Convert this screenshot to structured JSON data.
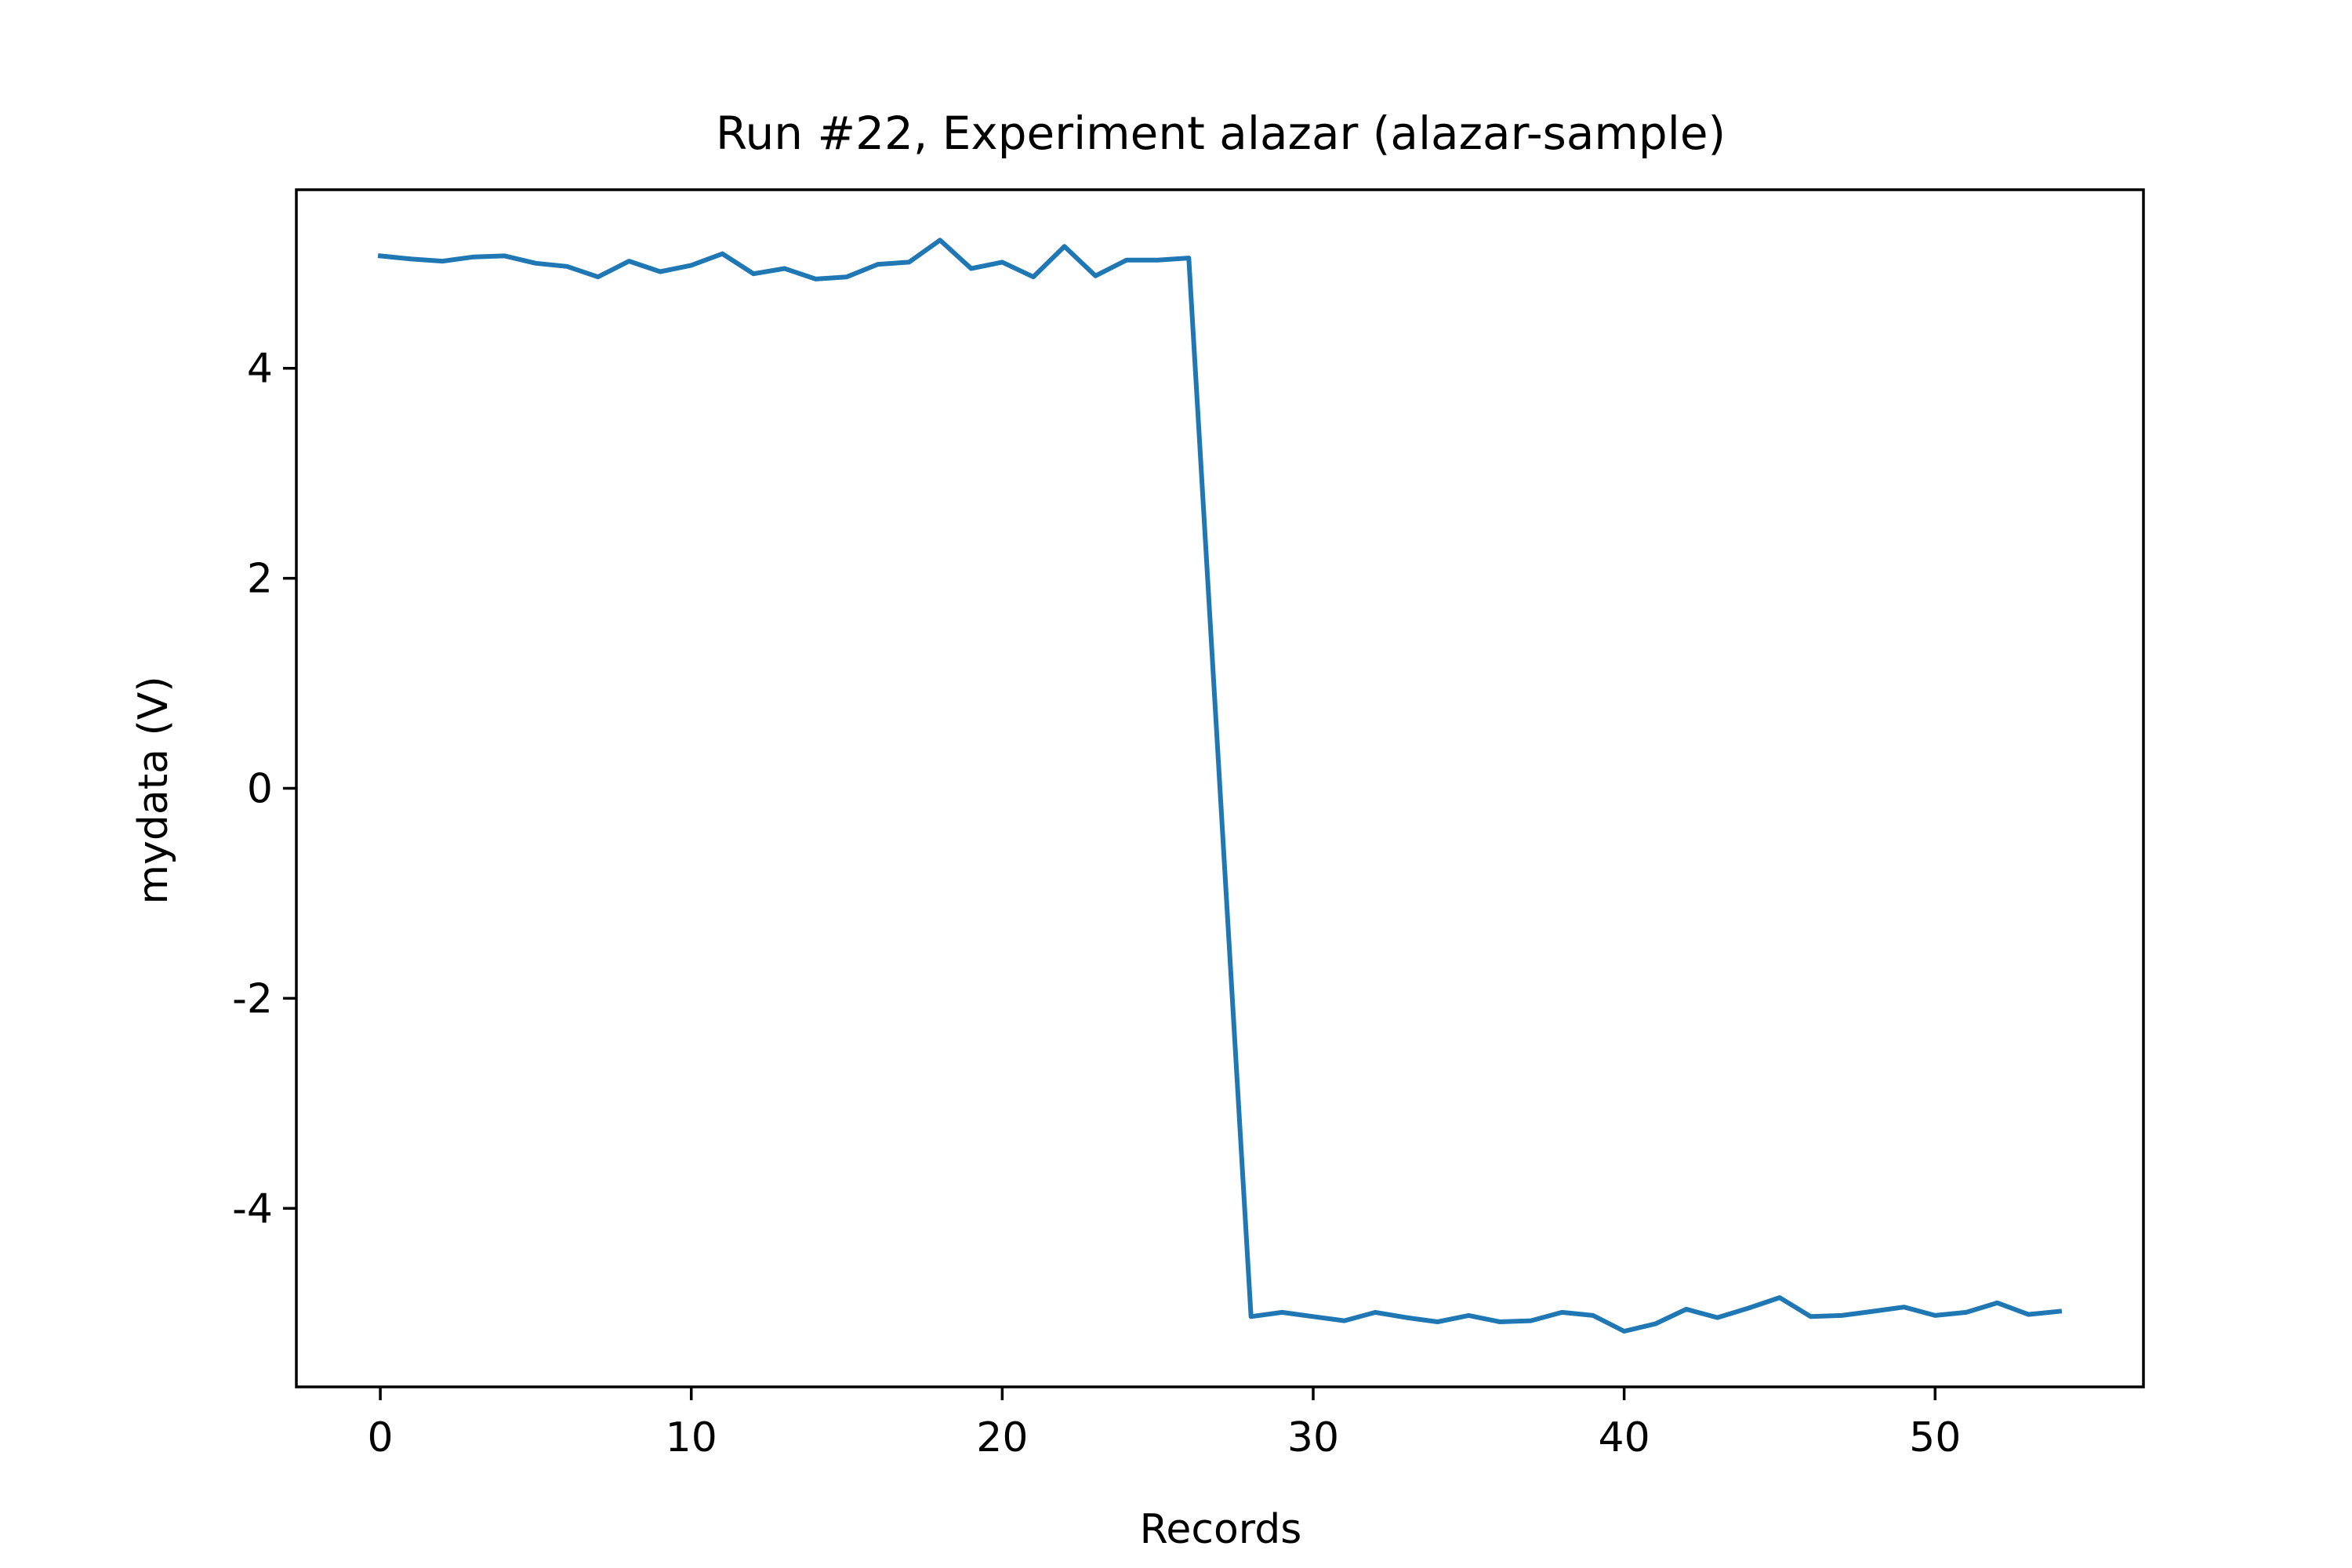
{
  "chart_data": {
    "type": "line",
    "title": "Run #22, Experiment alazar (alazar-sample)",
    "xlabel": "Records",
    "ylabel": "mydata (V)",
    "xlim": [
      -2.7,
      56.7
    ],
    "ylim": [
      -5.7,
      5.7
    ],
    "x_ticks": [
      0,
      10,
      20,
      30,
      40,
      50
    ],
    "x_tick_labels": [
      "0",
      "10",
      "20",
      "30",
      "40",
      "50"
    ],
    "y_ticks": [
      -4,
      -2,
      0,
      2,
      4
    ],
    "y_tick_labels": [
      "-4",
      "-2",
      "0",
      "2",
      "4"
    ],
    "grid": false,
    "series_color": "#1f77b4",
    "series": [
      {
        "x": [
          0,
          1,
          2,
          3,
          4,
          5,
          6,
          7,
          8,
          9,
          10,
          11,
          12,
          13,
          14,
          15,
          16,
          17,
          18,
          19,
          20,
          21,
          22,
          23,
          24,
          25,
          26,
          28,
          29,
          30,
          31,
          32,
          33,
          34,
          35,
          36,
          37,
          38,
          39,
          40,
          41,
          42,
          43,
          44,
          45,
          46,
          47,
          48,
          49,
          50,
          51,
          52,
          53,
          54
        ],
        "values": [
          5.07,
          5.04,
          5.02,
          5.06,
          5.07,
          5.0,
          4.97,
          4.87,
          5.02,
          4.92,
          4.98,
          5.09,
          4.9,
          4.95,
          4.85,
          4.87,
          4.99,
          5.01,
          5.22,
          4.95,
          5.01,
          4.87,
          5.16,
          4.88,
          5.03,
          5.03,
          5.05,
          -5.03,
          -4.99,
          -5.03,
          -5.07,
          -4.99,
          -5.04,
          -5.08,
          -5.02,
          -5.08,
          -5.07,
          -4.99,
          -5.02,
          -5.17,
          -5.1,
          -4.96,
          -5.04,
          -4.95,
          -4.85,
          -5.03,
          -5.02,
          -4.98,
          -4.94,
          -5.02,
          -4.99,
          -4.9,
          -5.01,
          -4.98
        ]
      }
    ]
  }
}
